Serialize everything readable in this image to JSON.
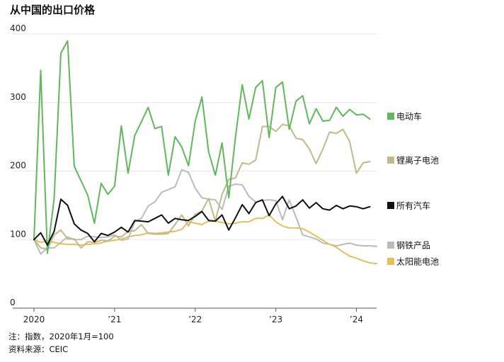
{
  "chart_data": {
    "type": "line",
    "title": "从中国的出口价格",
    "yticks": [
      {
        "value": 0,
        "label": "0"
      },
      {
        "value": 100,
        "label": "100"
      },
      {
        "value": 200,
        "label": "200"
      },
      {
        "value": 300,
        "label": "300"
      },
      {
        "value": 400,
        "label": "400"
      }
    ],
    "xticks": [
      {
        "value": 0,
        "label": "2020"
      },
      {
        "value": 12,
        "label": "’21"
      },
      {
        "value": 24,
        "label": "’22"
      },
      {
        "value": 36,
        "label": "’23"
      },
      {
        "value": 48,
        "label": "’24"
      }
    ],
    "ylim": [
      0,
      400
    ],
    "xlim": [
      0,
      51
    ],
    "legend_position": "right",
    "series": [
      {
        "name": "电动车",
        "color": "#5fb85a",
        "values": [
          100,
          347,
          80,
          160,
          372,
          390,
          207,
          186,
          165,
          124,
          182,
          166,
          178,
          266,
          197,
          252,
          272,
          293,
          262,
          265,
          194,
          250,
          235,
          208,
          273,
          308,
          228,
          194,
          241,
          161,
          250,
          326,
          276,
          322,
          332,
          249,
          322,
          330,
          261,
          302,
          310,
          269,
          291,
          273,
          274,
          293,
          280,
          290,
          282,
          283,
          276
        ]
      },
      {
        "name": "锂离子电池",
        "color": "#c2b98a",
        "values": [
          100,
          88,
          86,
          107,
          114,
          101,
          101,
          88,
          97,
          96,
          99,
          98,
          105,
          104,
          112,
          113,
          122,
          109,
          108,
          108,
          109,
          122,
          136,
          120,
          137,
          142,
          160,
          127,
          166,
          188,
          190,
          212,
          210,
          216,
          265,
          265,
          258,
          268,
          266,
          248,
          246,
          232,
          211,
          232,
          257,
          255,
          261,
          243,
          197,
          212,
          214
        ]
      },
      {
        "name": "所有汽车",
        "color": "#111111",
        "values": [
          100,
          110,
          92,
          112,
          159,
          150,
          123,
          114,
          109,
          97,
          109,
          106,
          111,
          118,
          111,
          128,
          127,
          126,
          131,
          136,
          124,
          131,
          129,
          128,
          134,
          141,
          128,
          127,
          136,
          114,
          132,
          151,
          138,
          154,
          158,
          135,
          152,
          163,
          145,
          149,
          158,
          146,
          154,
          145,
          143,
          150,
          145,
          149,
          148,
          145,
          148
        ]
      },
      {
        "name": "钢铁产品",
        "color": "#bbbbbb",
        "values": [
          100,
          79,
          88,
          88,
          96,
          104,
          100,
          100,
          105,
          104,
          103,
          104,
          107,
          99,
          101,
          126,
          131,
          149,
          155,
          169,
          173,
          177,
          202,
          198,
          175,
          161,
          159,
          158,
          144,
          178,
          181,
          180,
          163,
          155,
          157,
          158,
          157,
          129,
          158,
          133,
          107,
          104,
          101,
          95,
          93,
          91,
          93,
          95,
          92,
          91,
          91,
          90
        ]
      },
      {
        "name": "太阳能电池",
        "color": "#e3c157",
        "values": [
          100,
          96,
          98,
          96,
          94,
          93,
          93,
          92,
          93,
          94,
          95,
          98,
          99,
          101,
          104,
          106,
          107,
          110,
          109,
          110,
          111,
          112,
          115,
          126,
          124,
          122,
          127,
          127,
          125,
          123,
          124,
          126,
          126,
          131,
          131,
          136,
          126,
          120,
          117,
          117,
          116,
          111,
          105,
          99,
          93,
          89,
          82,
          76,
          73,
          69,
          66,
          65
        ]
      }
    ]
  },
  "footnote": {
    "note": "注：指数，2020年1月=100",
    "source": "资料来源：CEIC"
  }
}
